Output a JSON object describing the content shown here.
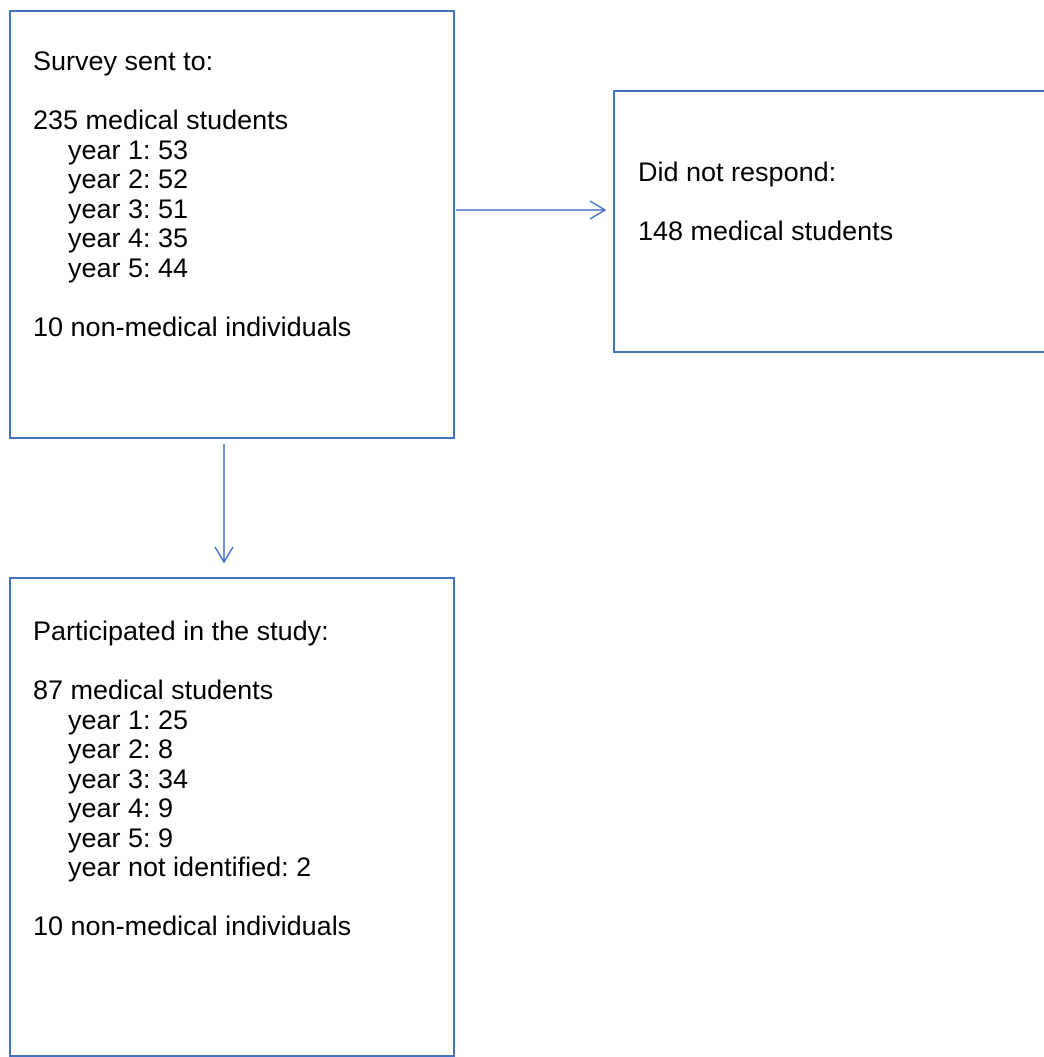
{
  "colors": {
    "box_border": "#4472c4",
    "arrow": "#4472c4",
    "text": "#000000"
  },
  "survey_box": {
    "heading": "Survey sent to:",
    "group_title": "235 medical students",
    "years": [
      "year 1: 53",
      "year 2: 52",
      "year 3: 51",
      "year 4: 35",
      "year 5: 44"
    ],
    "non_medical": "10 non-medical individuals"
  },
  "no_response_box": {
    "heading": "Did not respond:",
    "count": "148 medical students"
  },
  "participants_box": {
    "heading": "Participated in the study:",
    "group_title": "87 medical students",
    "years": [
      "year 1: 25",
      "year 2: 8",
      "year 3: 34",
      "year 4: 9",
      "year 5: 9",
      "year not identified: 2"
    ],
    "non_medical": "10 non-medical individuals"
  },
  "connections": [
    {
      "from": "survey_box",
      "to": "no_response_box"
    },
    {
      "from": "survey_box",
      "to": "participants_box"
    }
  ]
}
